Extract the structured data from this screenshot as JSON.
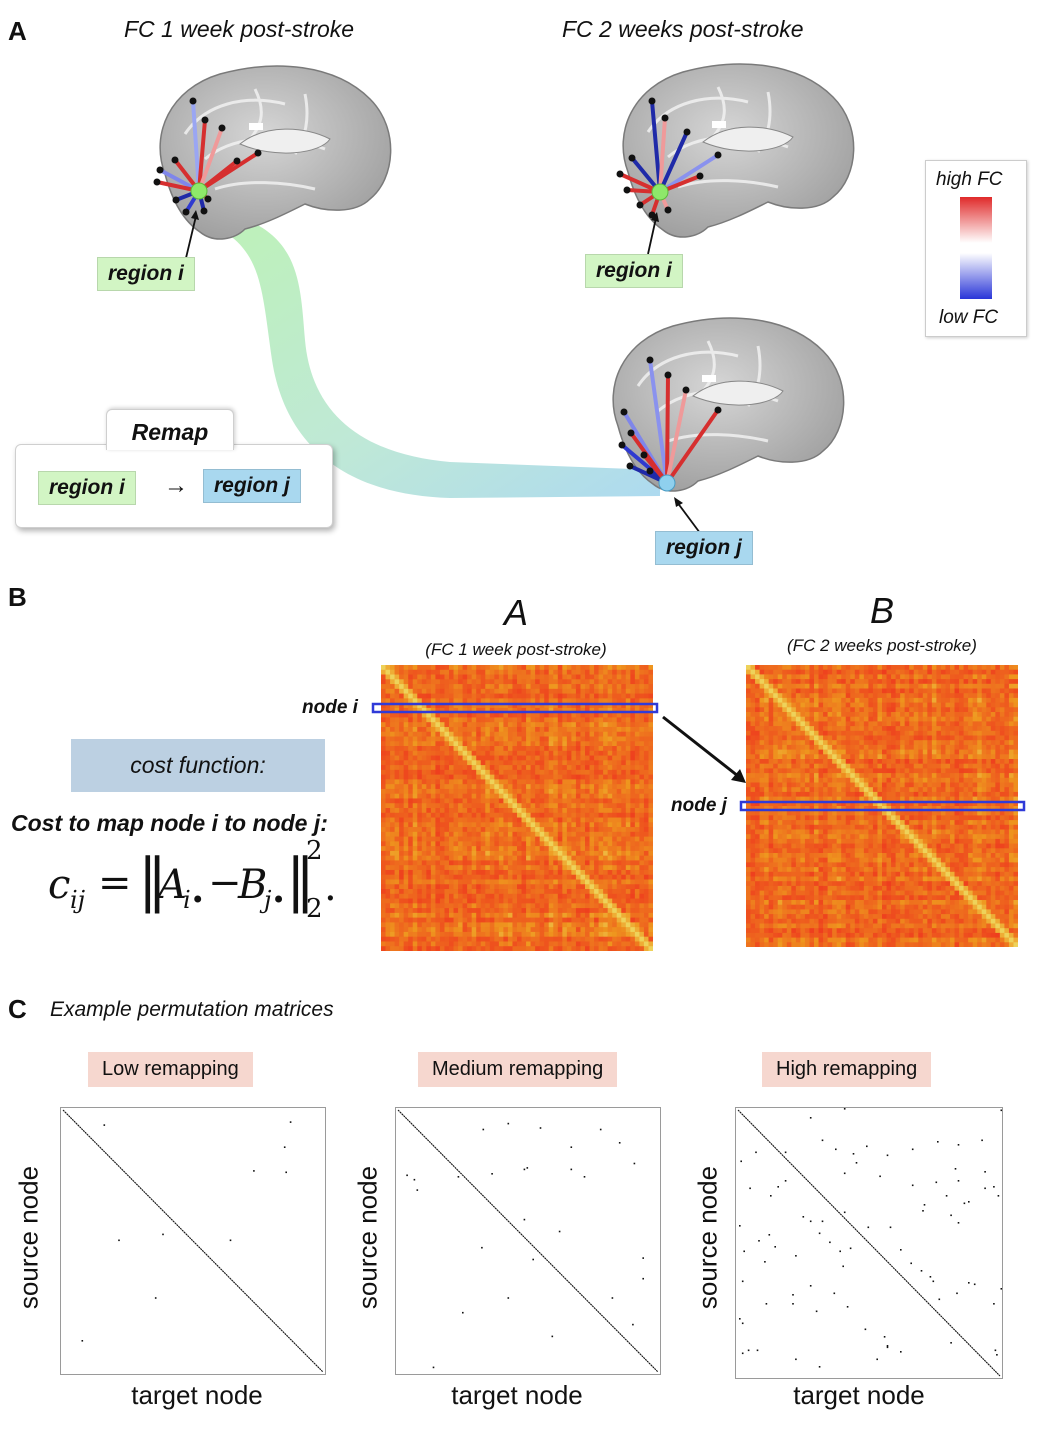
{
  "panelA": {
    "letter": "A",
    "title_week1": "FC 1 week post-stroke",
    "title_week2": "FC 2 weeks post-stroke",
    "region_i_1": "region i",
    "region_i_2": "region i",
    "region_j": "region j",
    "legend": {
      "high": "high FC",
      "low": "low FC",
      "high_color": "#e02a2a",
      "low_color": "#2a36d8"
    },
    "remap": {
      "title": "Remap",
      "from": "region i",
      "arrow": "→",
      "to": "region j"
    },
    "colors": {
      "region_i_box": "#d2f5c4",
      "region_j_box": "#a9d8ef",
      "node_i": "#8ee86a",
      "node_j": "#8fd0ee"
    }
  },
  "panelB": {
    "letter": "B",
    "matrixA": {
      "title": "A",
      "subtitle": "(FC 1 week post-stroke)"
    },
    "matrixB": {
      "title": "B",
      "subtitle": "(FC 2 weeks post-stroke)"
    },
    "node_i": "node i",
    "node_j": "node j",
    "cost_box": "cost function:",
    "cost_heading": "Cost to map node i to node j:",
    "formula": {
      "lhs": "c",
      "lhs_sub": "ij",
      "eq": "=",
      "termA": "A",
      "termA_sub": "i•",
      "minus": "−",
      "termB": "B",
      "termB_sub": "j•",
      "power": "2",
      "norm_sub": "2",
      "end": "."
    }
  },
  "panelC": {
    "letter": "C",
    "title": "Example permutation matrices",
    "matrices": [
      {
        "label": "Low remapping",
        "xlabel": "target node",
        "ylabel": "source node"
      },
      {
        "label": "Medium remapping",
        "xlabel": "target node",
        "ylabel": "source node"
      },
      {
        "label": "High remapping",
        "xlabel": "target node",
        "ylabel": "source node"
      }
    ]
  }
}
